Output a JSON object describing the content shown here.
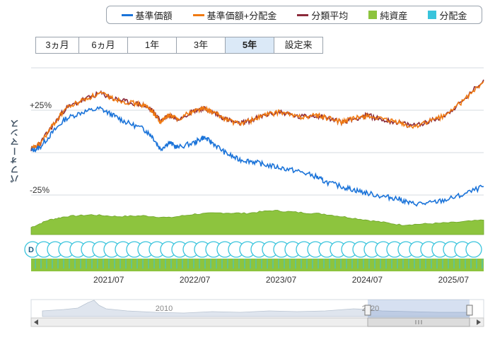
{
  "legend": {
    "items": [
      {
        "label": "基準価額",
        "color": "#1a73d9",
        "kind": "line"
      },
      {
        "label": "基準価額+分配金",
        "color": "#f07a12",
        "kind": "line"
      },
      {
        "label": "分類平均",
        "color": "#8b2a3a",
        "kind": "line"
      },
      {
        "label": "純資産",
        "color": "#8dc43e",
        "kind": "box"
      },
      {
        "label": "分配金",
        "color": "#39c4dc",
        "kind": "box"
      }
    ]
  },
  "tabs": [
    {
      "label": "3ヵ月",
      "active": false
    },
    {
      "label": "6ヵ月",
      "active": false
    },
    {
      "label": "1年",
      "active": false
    },
    {
      "label": "3年",
      "active": false
    },
    {
      "label": "5年",
      "active": true
    },
    {
      "label": "設定来",
      "active": false
    }
  ],
  "chart_data": {
    "type": "line",
    "ylabel": "パフォーマンス",
    "y_ticks": [
      "+25%",
      "-25%"
    ],
    "y_tick_values": [
      25,
      -25
    ],
    "ylim": [
      -35,
      50
    ],
    "x_ticks": [
      "2021/07",
      "2022/07",
      "2023/07",
      "2024/07",
      "2025/07"
    ],
    "x_range": [
      2020.6,
      2025.85
    ],
    "x_tick_values": [
      2021.5,
      2022.5,
      2023.5,
      2024.5,
      2025.5
    ],
    "series": [
      {
        "name": "基準価額",
        "color": "#1a73d9",
        "x": [
          2020.6,
          2020.7,
          2020.85,
          2021.0,
          2021.2,
          2021.4,
          2021.55,
          2021.7,
          2021.9,
          2022.0,
          2022.1,
          2022.2,
          2022.3,
          2022.5,
          2022.6,
          2022.7,
          2022.85,
          2023.0,
          2023.15,
          2023.3,
          2023.5,
          2023.7,
          2023.9,
          2024.0,
          2024.2,
          2024.35,
          2024.5,
          2024.7,
          2024.85,
          2025.0,
          2025.2,
          2025.4,
          2025.6,
          2025.85
        ],
        "y": [
          1,
          3,
          12,
          20,
          24,
          26,
          22,
          18,
          14,
          10,
          2,
          6,
          3,
          6,
          9,
          6,
          0,
          -4,
          -5,
          -7,
          -9,
          -11,
          -14,
          -17,
          -20,
          -22,
          -24,
          -26,
          -27,
          -30,
          -30,
          -28,
          -25,
          -20
        ]
      },
      {
        "name": "基準価額+分配金",
        "color": "#f07a12",
        "x": [
          2020.6,
          2020.7,
          2020.85,
          2021.0,
          2021.2,
          2021.4,
          2021.55,
          2021.7,
          2021.9,
          2022.0,
          2022.1,
          2022.2,
          2022.3,
          2022.5,
          2022.6,
          2022.7,
          2022.85,
          2023.0,
          2023.15,
          2023.3,
          2023.5,
          2023.7,
          2023.9,
          2024.0,
          2024.2,
          2024.35,
          2024.5,
          2024.7,
          2024.85,
          2025.0,
          2025.2,
          2025.4,
          2025.6,
          2025.85
        ],
        "y": [
          2,
          5,
          16,
          26,
          31,
          35,
          32,
          30,
          28,
          25,
          18,
          22,
          20,
          25,
          26,
          24,
          20,
          17,
          19,
          22,
          24,
          21,
          22,
          21,
          18,
          20,
          22,
          19,
          18,
          15,
          18,
          22,
          30,
          42
        ]
      },
      {
        "name": "分類平均",
        "color": "#8b2a3a",
        "x": [
          2020.6,
          2020.7,
          2020.85,
          2021.0,
          2021.2,
          2021.4,
          2021.55,
          2021.7,
          2021.9,
          2022.0,
          2022.1,
          2022.2,
          2022.3,
          2022.5,
          2022.6,
          2022.7,
          2022.85,
          2023.0,
          2023.15,
          2023.3,
          2023.5,
          2023.7,
          2023.9,
          2024.0,
          2024.2,
          2024.35,
          2024.5,
          2024.7,
          2024.85,
          2025.0,
          2025.2,
          2025.4,
          2025.6,
          2025.85
        ],
        "y": [
          2,
          5,
          16,
          26,
          31,
          35,
          32,
          30,
          28,
          25,
          19,
          22,
          20,
          25,
          26,
          24,
          20,
          17,
          19,
          22,
          24,
          21,
          22,
          21,
          18,
          20,
          22,
          19,
          18,
          16,
          18,
          22,
          30,
          43
        ]
      }
    ],
    "area": {
      "name": "純資産",
      "color": "#8dc43e",
      "x": [
        2020.6,
        2020.8,
        2021.0,
        2021.3,
        2021.6,
        2021.9,
        2022.2,
        2022.5,
        2022.8,
        2023.1,
        2023.4,
        2023.7,
        2024.0,
        2024.3,
        2024.6,
        2024.9,
        2025.2,
        2025.5,
        2025.85
      ],
      "v": [
        0.3,
        0.6,
        0.75,
        0.82,
        0.75,
        0.78,
        0.7,
        0.85,
        0.9,
        0.88,
        1.0,
        0.92,
        0.85,
        0.7,
        0.55,
        0.4,
        0.45,
        0.5,
        0.6
      ]
    },
    "distribution_marker": "D",
    "navigator": {
      "labels": [
        "2010",
        "2020"
      ]
    }
  }
}
